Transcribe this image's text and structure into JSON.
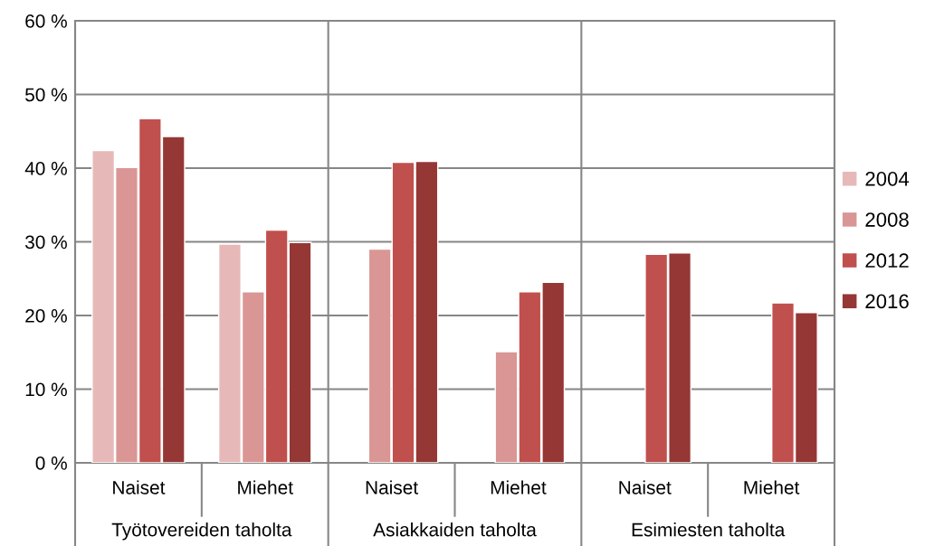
{
  "chart_data": {
    "type": "bar",
    "categories": [
      "Naiset",
      "Miehet",
      "Naiset",
      "Miehet",
      "Naiset",
      "Miehet"
    ],
    "annotations": [
      "Työtovereiden taholta",
      "Asiakkaiden taholta",
      "Esimiesten taholta"
    ],
    "series": [
      {
        "name": "2004",
        "color": "#e6b9b8",
        "values": [
          42.4,
          29.7,
          null,
          null,
          null,
          null
        ]
      },
      {
        "name": "2008",
        "color": "#d99694",
        "values": [
          40.1,
          23.2,
          29.0,
          15.1,
          null,
          null
        ]
      },
      {
        "name": "2012",
        "color": "#c0504d",
        "values": [
          46.7,
          31.6,
          40.8,
          23.2,
          28.3,
          21.7
        ]
      },
      {
        "name": "2016",
        "color": "#953735",
        "values": [
          44.3,
          29.9,
          40.9,
          24.5,
          28.5,
          20.4
        ]
      }
    ],
    "ylim": [
      0,
      60
    ],
    "yticks": [
      {
        "value": 0,
        "label": "0 %"
      },
      {
        "value": 10,
        "label": "10 %"
      },
      {
        "value": 20,
        "label": "20 %"
      },
      {
        "value": 30,
        "label": "30 %"
      },
      {
        "value": 40,
        "label": "40 %"
      },
      {
        "value": 50,
        "label": "50 %"
      },
      {
        "value": 60,
        "label": "60 %"
      }
    ],
    "grid": "y",
    "legend": "right"
  }
}
